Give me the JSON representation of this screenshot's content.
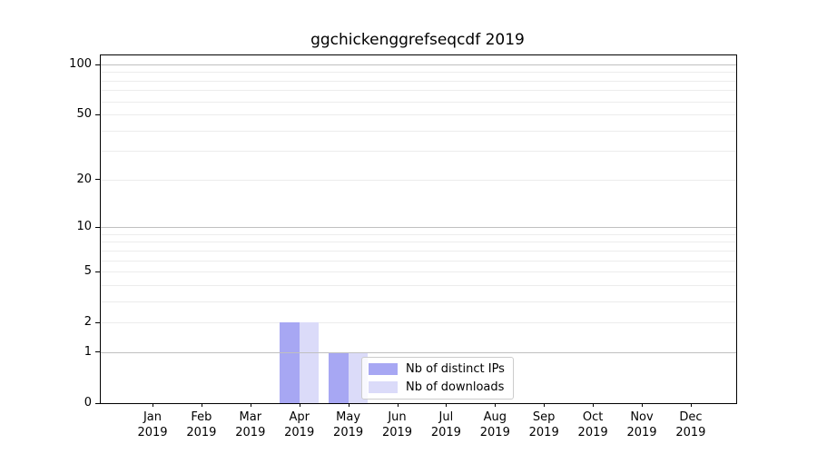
{
  "title": "ggchickenggrefseqcdf 2019",
  "colors": {
    "background": "#ffffff",
    "axis": "#000000",
    "grid_major": "#c0c0c0",
    "grid_minor": "#ececec",
    "legend_border": "#cccccc",
    "bar_distinct_ips": "#a7a7f3",
    "bar_downloads": "#dbdbf9"
  },
  "chart_data": {
    "type": "bar",
    "title": "ggchickenggrefseqcdf 2019",
    "categories": [
      "Jan",
      "Feb",
      "Mar",
      "Apr",
      "May",
      "Jun",
      "Jul",
      "Aug",
      "Sep",
      "Oct",
      "Nov",
      "Dec"
    ],
    "x_sublabel": "2019",
    "series": [
      {
        "name": "Nb of distinct IPs",
        "color": "#a7a7f3",
        "values": [
          0,
          0,
          0,
          2,
          1,
          0,
          0,
          0,
          0,
          0,
          0,
          0
        ]
      },
      {
        "name": "Nb of downloads",
        "color": "#dbdbf9",
        "values": [
          0,
          0,
          0,
          2,
          1,
          0,
          0,
          0,
          0,
          0,
          0,
          0
        ]
      }
    ],
    "xlabel": "",
    "ylabel": "",
    "yscale": "log1p",
    "ylim": [
      0,
      100
    ],
    "yticks": [
      0,
      1,
      2,
      5,
      10,
      20,
      50,
      100
    ],
    "major_gridlines": [
      1,
      10,
      100
    ],
    "minor_gridlines": [
      2,
      3,
      4,
      5,
      6,
      7,
      8,
      9,
      20,
      30,
      40,
      50,
      60,
      70,
      80,
      90
    ],
    "grid": true,
    "legend_position": "inside lower right"
  }
}
